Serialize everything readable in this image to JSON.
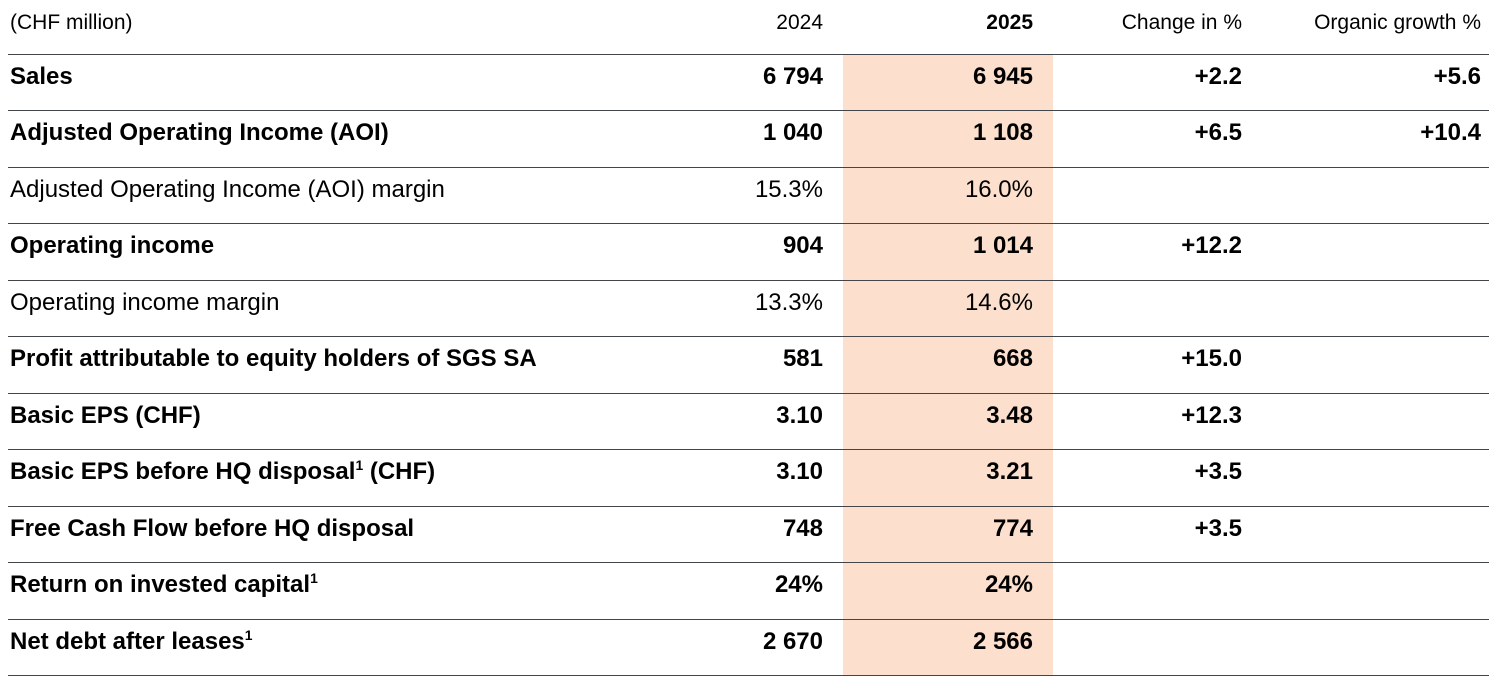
{
  "colors": {
    "highlight": "#fcdfcc",
    "border": "#42464b",
    "text": "#000000"
  },
  "table": {
    "header": {
      "unit": "(CHF million)",
      "col2024": "2024",
      "col2025": "2025",
      "change": "Change in %",
      "organic": "Organic growth %"
    },
    "rows": [
      {
        "label": "Sales",
        "sup": "",
        "suffix": "",
        "y2024": "6 794",
        "y2025": "6 945",
        "change": "+2.2",
        "organic": "+5.6"
      },
      {
        "label": "Adjusted Operating Income (AOI)",
        "sup": "",
        "suffix": "",
        "y2024": "1 040",
        "y2025": "1 108",
        "change": "+6.5",
        "organic": "+10.4"
      },
      {
        "label": "Adjusted Operating Income (AOI) margin",
        "sup": "",
        "suffix": "",
        "y2024": "15.3%",
        "y2025": "16.0%",
        "change": "",
        "organic": ""
      },
      {
        "label": "Operating income",
        "sup": "",
        "suffix": "",
        "y2024": "904",
        "y2025": "1 014",
        "change": "+12.2",
        "organic": ""
      },
      {
        "label": "Operating income margin",
        "sup": "",
        "suffix": "",
        "y2024": "13.3%",
        "y2025": "14.6%",
        "change": "",
        "organic": ""
      },
      {
        "label": "Profit attributable to equity holders of SGS SA",
        "sup": "",
        "suffix": "",
        "y2024": "581",
        "y2025": "668",
        "change": "+15.0",
        "organic": ""
      },
      {
        "label": "Basic EPS (CHF)",
        "sup": "",
        "suffix": "",
        "y2024": "3.10",
        "y2025": "3.48",
        "change": "+12.3",
        "organic": ""
      },
      {
        "label": "Basic EPS before HQ disposal",
        "sup": "1",
        "suffix": " (CHF)",
        "y2024": "3.10",
        "y2025": "3.21",
        "change": "+3.5",
        "organic": ""
      },
      {
        "label": "Free Cash Flow before HQ disposal",
        "sup": "",
        "suffix": "",
        "y2024": "748",
        "y2025": "774",
        "change": "+3.5",
        "organic": ""
      },
      {
        "label": "Return on invested capital",
        "sup": "1",
        "suffix": "",
        "y2024": "24%",
        "y2025": "24%",
        "change": "",
        "organic": ""
      },
      {
        "label": "Net debt after leases",
        "sup": "1",
        "suffix": "",
        "y2024": "2 670",
        "y2025": "2 566",
        "change": "",
        "organic": ""
      }
    ]
  }
}
